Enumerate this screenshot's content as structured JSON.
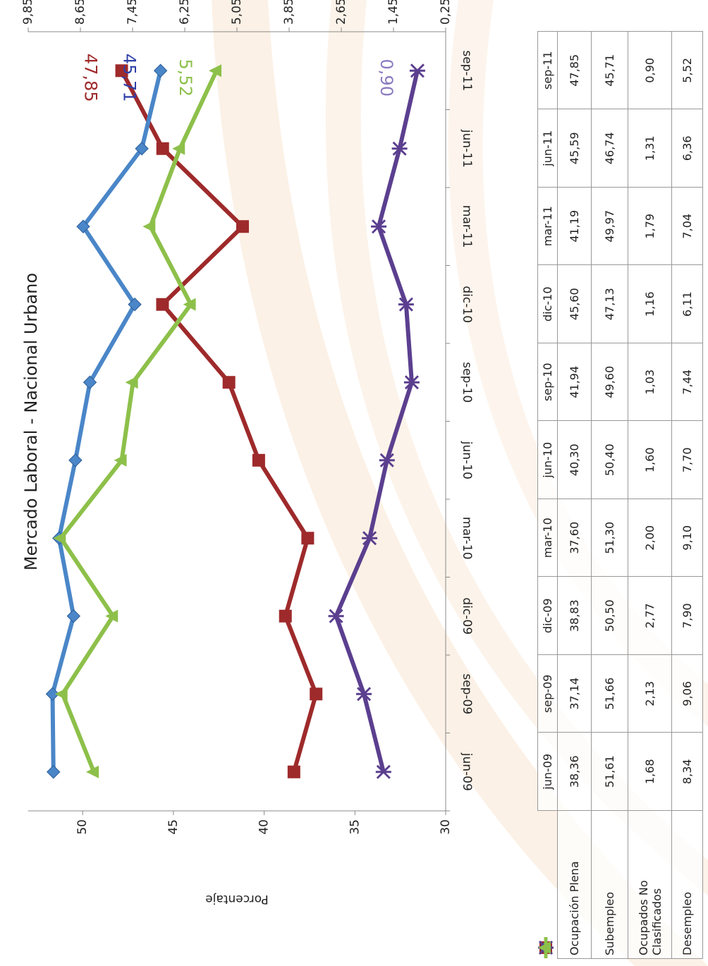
{
  "chart_data": {
    "type": "line",
    "title": "Mercado Laboral - Nacional Urbano",
    "y_label": "Porcentaje",
    "categories": [
      "jun-09",
      "sep-09",
      "dic-09",
      "mar-10",
      "jun-10",
      "sep-10",
      "dic-10",
      "mar-11",
      "jun-11",
      "sep-11"
    ],
    "ylim": [
      30,
      53
    ],
    "yticks": [
      30,
      35,
      40,
      45,
      50
    ],
    "y2lim": [
      0.25,
      9.85
    ],
    "y2ticks": [
      {
        "value": 0.25,
        "label": "0,25"
      },
      {
        "value": 1.45,
        "label": "1,45"
      },
      {
        "value": 2.65,
        "label": "2,65"
      },
      {
        "value": 3.85,
        "label": "3,85"
      },
      {
        "value": 5.05,
        "label": "5,05"
      },
      {
        "value": 6.25,
        "label": "6,25"
      },
      {
        "value": 7.45,
        "label": "7,45"
      },
      {
        "value": 8.65,
        "label": "8,65"
      },
      {
        "value": 9.85,
        "label": "9,85"
      }
    ],
    "series": [
      {
        "name": "Ocupación Plena",
        "color": "#9e2a2b",
        "marker": "square",
        "values": [
          38.36,
          37.14,
          38.83,
          37.6,
          40.3,
          41.94,
          45.6,
          41.19,
          45.59,
          47.85
        ],
        "value_labels": [
          "38,36",
          "37,14",
          "38,83",
          "37,60",
          "40,30",
          "41,94",
          "45,60",
          "41,19",
          "45,59",
          "47,85"
        ]
      },
      {
        "name": "Subempleo",
        "color": "#4a86c8",
        "label_color": "#2e3fa8",
        "marker": "diamond",
        "values": [
          51.61,
          51.66,
          50.5,
          51.3,
          50.4,
          49.6,
          47.13,
          49.97,
          46.74,
          45.71
        ],
        "value_labels": [
          "51,61",
          "51,66",
          "50,50",
          "51,30",
          "50,40",
          "49,60",
          "47,13",
          "49,97",
          "46,74",
          "45,71"
        ]
      },
      {
        "name": "Ocupados No Clasificados",
        "color": "#5b3f8f",
        "label_color": "#8a7ac0",
        "marker": "x",
        "axis": "y2",
        "values": [
          1.68,
          2.13,
          2.77,
          2.0,
          1.6,
          1.03,
          1.16,
          1.79,
          1.31,
          0.9
        ],
        "value_labels": [
          "1,68",
          "2,13",
          "2,77",
          "2,00",
          "1,60",
          "1,03",
          "1,16",
          "1,79",
          "1,31",
          "0,90"
        ]
      },
      {
        "name": "Desempleo",
        "color": "#8dc04a",
        "marker": "triangle",
        "axis": "y2",
        "values": [
          8.34,
          9.06,
          7.9,
          9.1,
          7.7,
          7.44,
          6.11,
          7.04,
          6.36,
          5.52
        ],
        "value_labels": [
          "8,34",
          "9,06",
          "7,90",
          "9,10",
          "7,70",
          "7,44",
          "6,11",
          "7,04",
          "6,36",
          "5,52"
        ]
      }
    ]
  }
}
